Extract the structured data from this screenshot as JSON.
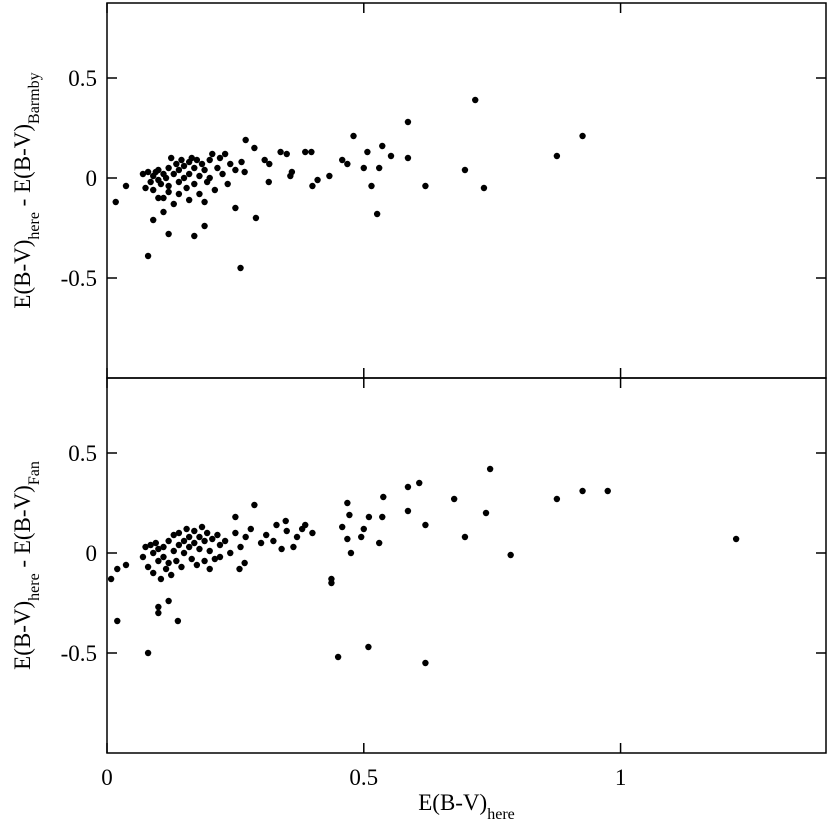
{
  "chart_data": [
    {
      "type": "scatter",
      "ylabel": [
        {
          "text": "E(B-V)"
        },
        {
          "text": "here",
          "sub": true
        },
        {
          "text": " - E(B-V)"
        },
        {
          "text": "Barmby",
          "sub": true
        }
      ],
      "xlim": [
        0,
        1.4
      ],
      "ylim": [
        -1,
        0.875
      ],
      "yticks": [
        -0.5,
        0,
        0.5
      ],
      "color": "#000000",
      "x": [
        0.017,
        0.037,
        0.08,
        0.09,
        0.12,
        0.17,
        0.19,
        0.26,
        0.29,
        0.27,
        0.25,
        0.48,
        0.586,
        0.717,
        0.926,
        0.876,
        0.734,
        0.697,
        0.62,
        0.526,
        0.536,
        0.507,
        0.553,
        0.586,
        0.53,
        0.515,
        0.5,
        0.468,
        0.458,
        0.433,
        0.41,
        0.4,
        0.386,
        0.398,
        0.36,
        0.357,
        0.35,
        0.338,
        0.316,
        0.315,
        0.307,
        0.287,
        0.262,
        0.268,
        0.07,
        0.075,
        0.08,
        0.085,
        0.09,
        0.09,
        0.095,
        0.1,
        0.1,
        0.105,
        0.11,
        0.11,
        0.115,
        0.12,
        0.12,
        0.125,
        0.13,
        0.13,
        0.135,
        0.14,
        0.14,
        0.145,
        0.15,
        0.15,
        0.155,
        0.16,
        0.16,
        0.165,
        0.17,
        0.17,
        0.175,
        0.18,
        0.18,
        0.185,
        0.19,
        0.195,
        0.2,
        0.2,
        0.205,
        0.21,
        0.215,
        0.22,
        0.225,
        0.23,
        0.235,
        0.24,
        0.25,
        0.12,
        0.11,
        0.1,
        0.14,
        0.16,
        0.19
      ],
      "values": [
        -0.12,
        -0.04,
        -0.39,
        -0.21,
        -0.28,
        -0.29,
        -0.24,
        -0.45,
        -0.2,
        0.19,
        -0.15,
        0.21,
        0.28,
        0.39,
        0.21,
        0.11,
        -0.05,
        0.04,
        -0.04,
        -0.18,
        0.16,
        0.13,
        0.11,
        0.1,
        0.05,
        -0.04,
        0.05,
        0.07,
        0.09,
        0.01,
        -0.01,
        -0.04,
        0.13,
        0.13,
        0.03,
        0.01,
        0.12,
        0.13,
        0.07,
        -0.02,
        0.09,
        0.15,
        0.08,
        0.03,
        0.02,
        -0.05,
        0.03,
        -0.02,
        0.01,
        -0.06,
        0.03,
        -0.01,
        0.04,
        -0.03,
        0.02,
        -0.1,
        0.0,
        0.05,
        -0.04,
        0.1,
        0.02,
        -0.13,
        0.07,
        -0.02,
        0.04,
        0.09,
        0.0,
        0.06,
        -0.05,
        0.08,
        0.02,
        0.1,
        -0.03,
        0.05,
        0.09,
        0.01,
        -0.08,
        0.07,
        0.04,
        -0.02,
        0.09,
        0.0,
        0.12,
        -0.06,
        0.05,
        0.1,
        0.02,
        0.12,
        -0.03,
        0.07,
        0.04,
        -0.07,
        -0.17,
        -0.1,
        -0.08,
        -0.11,
        -0.12
      ]
    },
    {
      "type": "scatter",
      "ylabel": [
        {
          "text": "E(B-V)"
        },
        {
          "text": "here",
          "sub": true
        },
        {
          "text": " - E(B-V)"
        },
        {
          "text": "Fan",
          "sub": true
        }
      ],
      "xlabel": [
        {
          "text": "E(B-V)"
        },
        {
          "text": "here",
          "sub": true
        }
      ],
      "xlim": [
        0,
        1.4
      ],
      "xticks": [
        0,
        0.5,
        1
      ],
      "ylim": [
        -1,
        0.875
      ],
      "yticks": [
        -0.5,
        0,
        0.5
      ],
      "color": "#000000",
      "x": [
        0.008,
        0.02,
        0.02,
        0.037,
        0.08,
        0.1,
        0.12,
        0.138,
        0.1,
        0.45,
        0.509,
        0.62,
        1.225,
        0.975,
        0.926,
        0.876,
        0.746,
        0.738,
        0.697,
        0.786,
        0.676,
        0.608,
        0.586,
        0.586,
        0.62,
        0.538,
        0.536,
        0.51,
        0.5,
        0.472,
        0.468,
        0.458,
        0.468,
        0.53,
        0.495,
        0.475,
        0.437,
        0.437,
        0.4,
        0.386,
        0.363,
        0.348,
        0.324,
        0.287,
        0.25,
        0.268,
        0.258,
        0.07,
        0.075,
        0.08,
        0.085,
        0.09,
        0.09,
        0.095,
        0.1,
        0.1,
        0.105,
        0.11,
        0.11,
        0.115,
        0.12,
        0.12,
        0.125,
        0.13,
        0.13,
        0.135,
        0.14,
        0.14,
        0.145,
        0.15,
        0.15,
        0.155,
        0.16,
        0.16,
        0.165,
        0.17,
        0.17,
        0.175,
        0.18,
        0.18,
        0.185,
        0.19,
        0.19,
        0.195,
        0.2,
        0.205,
        0.21,
        0.215,
        0.22,
        0.23,
        0.24,
        0.25,
        0.26,
        0.27,
        0.28,
        0.3,
        0.31,
        0.33,
        0.34,
        0.35,
        0.37,
        0.38,
        0.22,
        0.2
      ],
      "values": [
        -0.13,
        -0.08,
        -0.34,
        -0.06,
        -0.5,
        -0.3,
        -0.24,
        -0.34,
        -0.27,
        -0.52,
        -0.47,
        -0.55,
        0.07,
        0.31,
        0.31,
        0.27,
        0.42,
        0.2,
        0.08,
        -0.01,
        0.27,
        0.35,
        0.33,
        0.21,
        0.14,
        0.28,
        0.18,
        0.18,
        0.12,
        0.19,
        0.25,
        0.13,
        0.07,
        0.05,
        0.08,
        0.0,
        -0.13,
        -0.15,
        0.1,
        0.14,
        0.03,
        0.16,
        0.06,
        0.24,
        0.18,
        -0.05,
        -0.08,
        -0.02,
        0.03,
        -0.07,
        0.04,
        0.0,
        -0.1,
        0.05,
        -0.04,
        0.02,
        -0.13,
        0.03,
        -0.02,
        -0.08,
        0.06,
        -0.05,
        -0.11,
        0.09,
        0.01,
        -0.04,
        0.04,
        0.1,
        -0.07,
        0.06,
        0.0,
        0.12,
        0.03,
        0.08,
        -0.03,
        0.11,
        0.05,
        -0.06,
        0.08,
        0.02,
        0.13,
        -0.04,
        0.06,
        0.1,
        0.01,
        0.07,
        -0.03,
        0.09,
        0.04,
        0.06,
        0.0,
        0.1,
        0.03,
        0.08,
        0.12,
        0.05,
        0.09,
        0.14,
        0.02,
        0.11,
        0.08,
        0.12,
        -0.02,
        -0.08
      ]
    }
  ]
}
